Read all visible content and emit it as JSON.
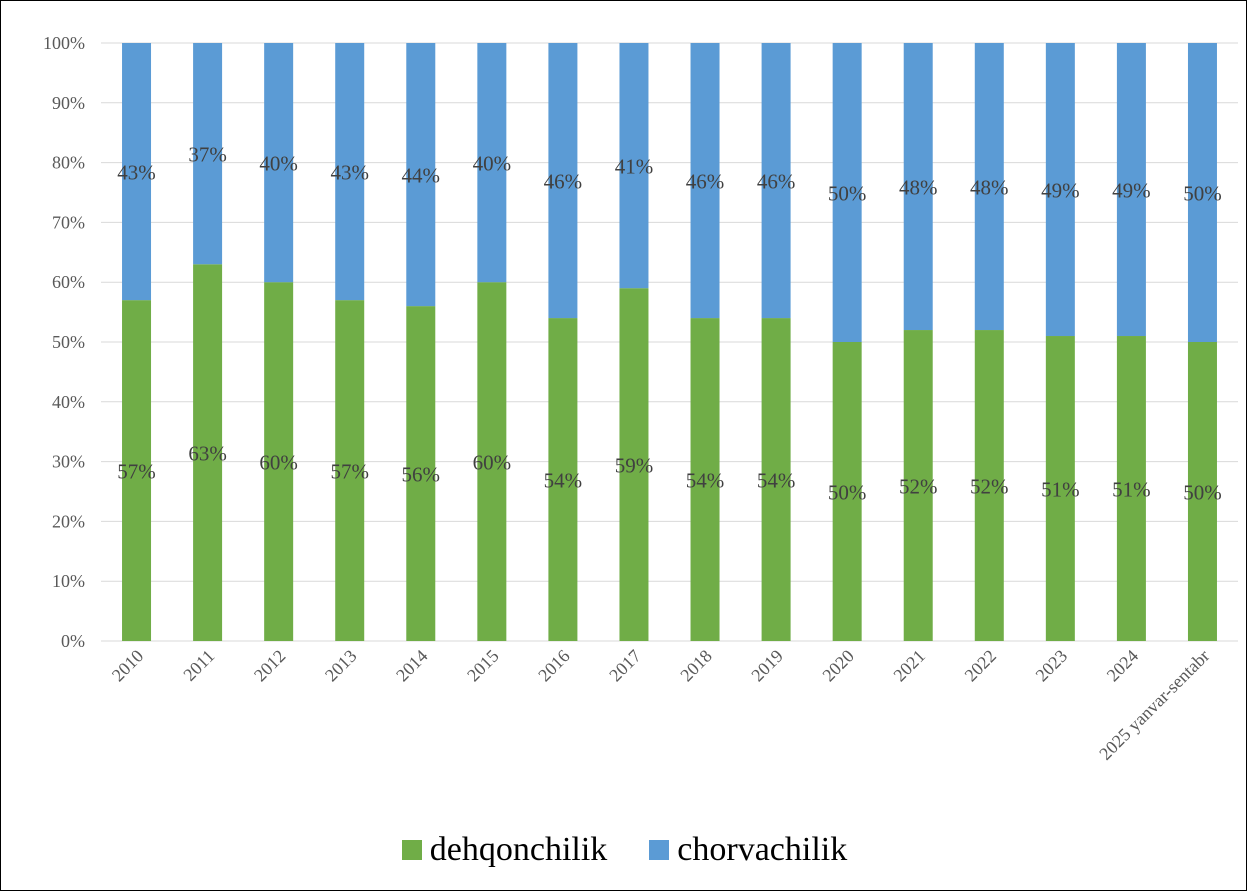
{
  "chart_data": {
    "type": "bar",
    "stacked": true,
    "percent_stacked": true,
    "categories": [
      "2010",
      "2011",
      "2012",
      "2013",
      "2014",
      "2015",
      "2016",
      "2017",
      "2018",
      "2019",
      "2020",
      "2021",
      "2022",
      "2023",
      "2024",
      "2025 yanvar-sentabr"
    ],
    "series": [
      {
        "name": "dehqonchilik",
        "color": "#70AD47",
        "values": [
          57,
          63,
          60,
          57,
          56,
          60,
          54,
          59,
          54,
          54,
          50,
          52,
          52,
          51,
          51,
          50
        ],
        "labels": [
          "57%",
          "63%",
          "60%",
          "57%",
          "56%",
          "60%",
          "54%",
          "59%",
          "54%",
          "54%",
          "50%",
          "52%",
          "52%",
          "51%",
          "51%",
          "50%"
        ]
      },
      {
        "name": "chorvachilik",
        "color": "#5B9BD5",
        "values": [
          43,
          37,
          40,
          43,
          44,
          40,
          46,
          41,
          46,
          46,
          50,
          48,
          48,
          49,
          49,
          50
        ],
        "labels": [
          "43%",
          "37%",
          "40%",
          "43%",
          "44%",
          "40%",
          "46%",
          "41%",
          "46%",
          "46%",
          "50%",
          "48%",
          "48%",
          "49%",
          "49%",
          "50%"
        ]
      }
    ],
    "ylim": [
      0,
      100
    ],
    "yticks": [
      "0%",
      "10%",
      "20%",
      "30%",
      "40%",
      "50%",
      "60%",
      "70%",
      "80%",
      "90%",
      "100%"
    ],
    "grid": true,
    "legend_position": "bottom",
    "title": "",
    "xlabel": "",
    "ylabel": ""
  }
}
